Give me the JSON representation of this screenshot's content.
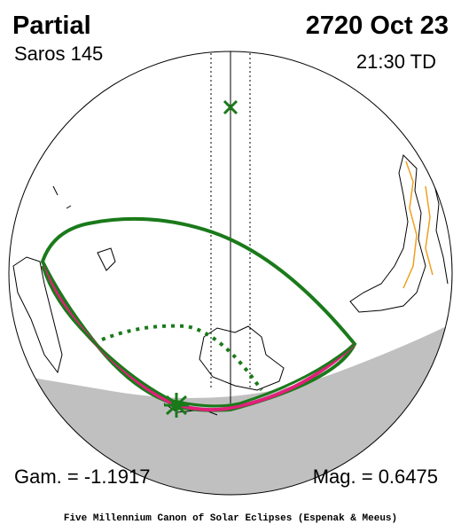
{
  "header": {
    "title": "Partial",
    "subtitle": "Saros 145",
    "date": "2720 Oct 23",
    "time": "21:30 TD"
  },
  "footer": {
    "gamma": "Gam. = -1.1917",
    "magnitude": "Mag. = 0.6475",
    "credit": "Five Millennium Canon of Solar Eclipses (Espenak & Meeus)"
  }
}
